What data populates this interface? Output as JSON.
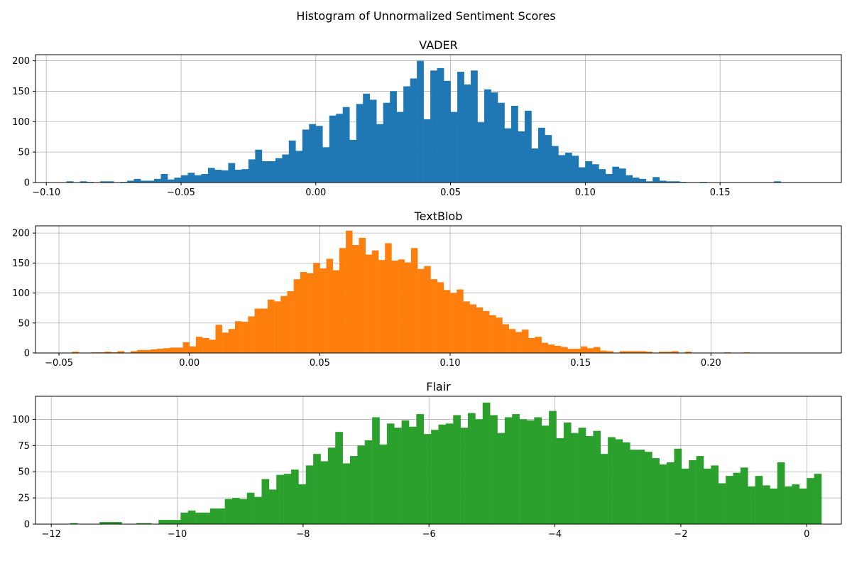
{
  "figure": {
    "suptitle": "Histogram of Unnormalized Sentiment Scores"
  },
  "chart_data": [
    {
      "type": "bar",
      "title": "VADER",
      "xlabel": "",
      "ylabel": "",
      "color": "#1f77b4",
      "grid": true,
      "bin_start": -0.0925,
      "bin_width": 0.0025,
      "values": [
        2,
        0,
        2,
        1,
        0,
        2,
        2,
        0,
        1,
        3,
        6,
        3,
        3,
        6,
        14,
        5,
        8,
        12,
        16,
        12,
        14,
        24,
        21,
        20,
        32,
        21,
        22,
        38,
        54,
        35,
        35,
        40,
        46,
        69,
        52,
        87,
        96,
        93,
        58,
        110,
        113,
        124,
        70,
        129,
        146,
        136,
        96,
        131,
        150,
        116,
        158,
        171,
        200,
        104,
        184,
        188,
        167,
        116,
        182,
        161,
        184,
        99,
        153,
        148,
        131,
        89,
        126,
        84,
        118,
        56,
        90,
        78,
        60,
        45,
        49,
        44,
        25,
        35,
        30,
        22,
        14,
        26,
        23,
        12,
        8,
        6,
        2,
        9,
        3,
        2,
        2,
        1,
        0,
        0,
        1,
        0,
        0,
        0,
        0,
        0,
        0,
        0,
        0,
        0,
        0,
        2
      ],
      "xlim": [
        -0.104,
        0.195
      ],
      "ylim": [
        0,
        210
      ],
      "xticks": [
        -0.1,
        -0.05,
        0.0,
        0.05,
        0.1,
        0.15
      ],
      "xtick_labels": [
        "−0.10",
        "−0.05",
        "0.00",
        "0.05",
        "0.10",
        "0.15"
      ],
      "yticks": [
        0,
        50,
        100,
        150,
        200
      ],
      "ytick_labels": [
        "0",
        "50",
        "100",
        "150",
        "200"
      ]
    },
    {
      "type": "bar",
      "title": "TextBlob",
      "xlabel": "",
      "ylabel": "",
      "color": "#ff7f0e",
      "grid": true,
      "bin_start": -0.045,
      "bin_width": 0.0025,
      "values": [
        2,
        0,
        0,
        1,
        1,
        2,
        1,
        3,
        0,
        3,
        5,
        5,
        6,
        7,
        8,
        9,
        9,
        18,
        11,
        27,
        25,
        22,
        47,
        34,
        40,
        53,
        52,
        61,
        74,
        74,
        89,
        86,
        95,
        103,
        123,
        135,
        133,
        150,
        141,
        157,
        138,
        175,
        204,
        180,
        192,
        164,
        171,
        155,
        183,
        154,
        156,
        151,
        175,
        140,
        145,
        123,
        118,
        105,
        100,
        106,
        86,
        81,
        76,
        70,
        63,
        59,
        48,
        40,
        35,
        39,
        25,
        27,
        17,
        14,
        12,
        10,
        7,
        7,
        11,
        8,
        10,
        4,
        3,
        0,
        3,
        3,
        3,
        3,
        2,
        0,
        2,
        2,
        3,
        0,
        2,
        0,
        0,
        0,
        0,
        0,
        1,
        0,
        0,
        1
      ],
      "xlim": [
        -0.059,
        0.25
      ],
      "ylim": [
        0,
        212
      ],
      "xticks": [
        -0.05,
        0.0,
        0.05,
        0.1,
        0.15,
        0.2
      ],
      "xtick_labels": [
        "−0.05",
        "0.00",
        "0.05",
        "0.10",
        "0.15",
        "0.20"
      ],
      "yticks": [
        0,
        50,
        100,
        150,
        200
      ],
      "ytick_labels": [
        "0",
        "50",
        "100",
        "150",
        "200"
      ]
    },
    {
      "type": "bar",
      "title": "Flair",
      "xlabel": "",
      "ylabel": "",
      "color": "#2ca02c",
      "grid": true,
      "bin_start": -11.7,
      "bin_width": 0.117,
      "values": [
        1,
        0,
        0,
        0,
        2,
        2,
        2,
        0,
        0,
        1,
        1,
        0,
        4,
        4,
        4,
        11,
        13,
        11,
        11,
        15,
        15,
        24,
        25,
        24,
        30,
        26,
        43,
        33,
        47,
        48,
        52,
        38,
        56,
        67,
        60,
        73,
        88,
        58,
        65,
        75,
        80,
        102,
        76,
        96,
        92,
        99,
        93,
        105,
        86,
        90,
        95,
        96,
        104,
        92,
        106,
        100,
        116,
        104,
        87,
        102,
        105,
        100,
        99,
        102,
        94,
        108,
        82,
        97,
        87,
        92,
        84,
        89,
        67,
        83,
        81,
        78,
        71,
        71,
        69,
        63,
        57,
        59,
        72,
        53,
        61,
        65,
        53,
        56,
        39,
        46,
        49,
        54,
        36,
        46,
        37,
        34,
        59,
        36,
        38,
        34,
        44,
        48
      ],
      "xlim": [
        -12.25,
        0.55
      ],
      "ylim": [
        0,
        122
      ],
      "xticks": [
        -12,
        -10,
        -8,
        -6,
        -4,
        -2,
        0
      ],
      "xtick_labels": [
        "−12",
        "−10",
        "−8",
        "−6",
        "−4",
        "−2",
        "0"
      ],
      "yticks": [
        0,
        25,
        50,
        75,
        100
      ],
      "ytick_labels": [
        "0",
        "25",
        "50",
        "75",
        "100"
      ]
    }
  ]
}
